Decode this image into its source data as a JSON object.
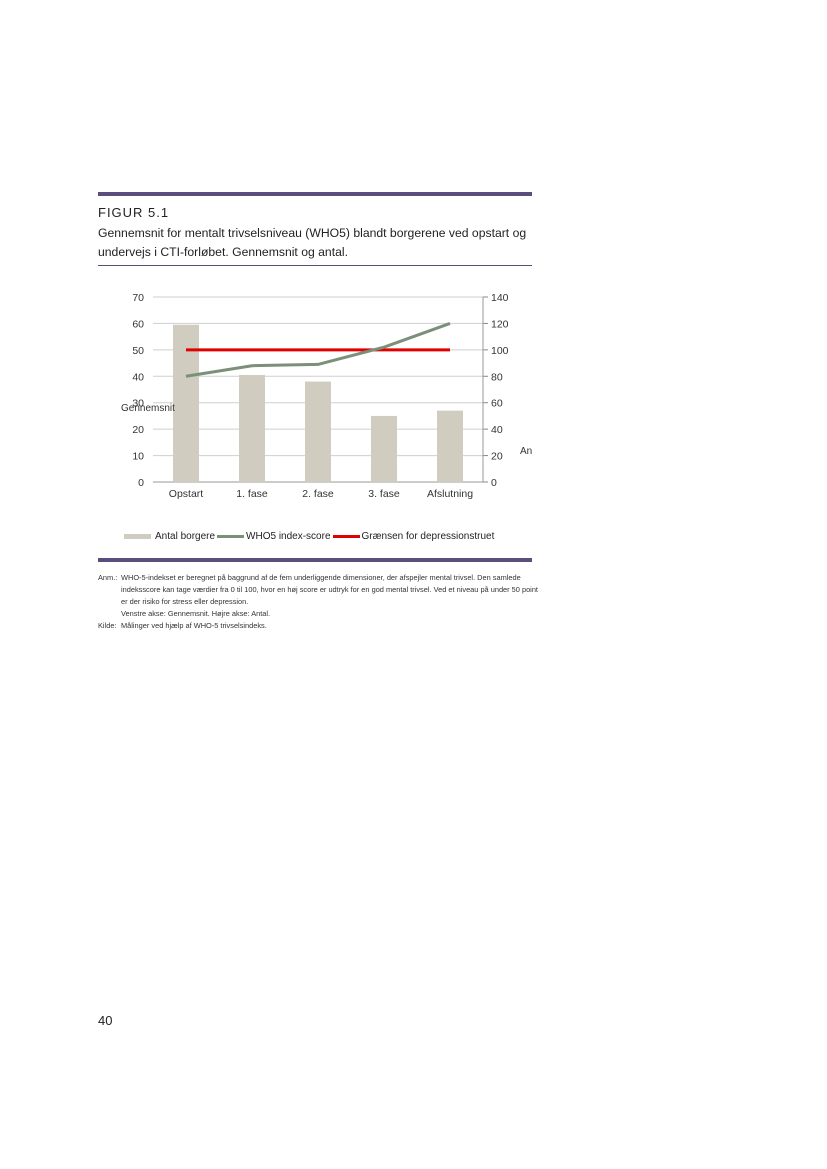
{
  "figure": {
    "label": "FIGUR 5.1",
    "title": "Gennemsnit for mentalt trivselsniveau (WHO5) blandt borgerene ved opstart og undervejs i CTI-forløbet. Gennemsnit og antal."
  },
  "chart_data": {
    "type": "bar",
    "categories": [
      "Opstart",
      "1. fase",
      "2. fase",
      "3. fase",
      "Afslutning"
    ],
    "series": [
      {
        "name": "Antal borgere",
        "type": "bar",
        "axis": "right",
        "values": [
          119,
          81,
          76,
          50,
          54
        ],
        "color": "#d0ccc0"
      },
      {
        "name": "WHO5 index-score",
        "type": "line",
        "axis": "left",
        "values": [
          40,
          44,
          44.5,
          51,
          60
        ],
        "color": "#7a9079"
      },
      {
        "name": "Grænsen for depressionstruet",
        "type": "line",
        "axis": "left",
        "values": [
          50,
          50,
          50,
          50,
          50
        ],
        "color": "#e00000"
      }
    ],
    "ylabel": "Gennemsnit",
    "y2label": "An",
    "ylim": [
      0,
      70
    ],
    "y2lim": [
      0,
      140
    ],
    "yticks": [
      "0",
      "10",
      "20",
      "30",
      "40",
      "50",
      "60",
      "70"
    ],
    "y2ticks": [
      "0",
      "20",
      "40",
      "60",
      "80",
      "100",
      "120",
      "140"
    ],
    "grid": true,
    "legend": "bottom"
  },
  "notes": [
    {
      "key": "Anm.:",
      "value": "WHO-5-indekset er beregnet på baggrund af de fem underliggende dimensioner, der afspejler mental trivsel. Den samlede indeksscore kan tage værdier fra 0 til 100, hvor en høj score er udtryk for en god mental trivsel. Ved et niveau på under 50 point er der risiko for stress eller depression."
    },
    {
      "key": "",
      "value": "Venstre akse: Gennemsnit. Højre akse: Antal."
    },
    {
      "key": "Kilde:",
      "value": "Målinger ved hjælp af WHO-5 trivselsindeks."
    }
  ],
  "page_number": "40"
}
